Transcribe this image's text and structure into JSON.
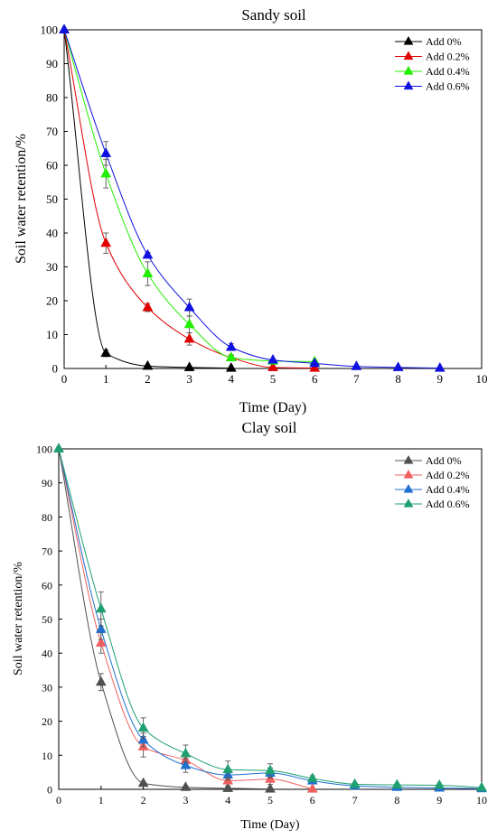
{
  "chart_data": [
    {
      "type": "line",
      "title": "Sandy soil",
      "xlabel": "Time (Day)",
      "ylabel": "Soil water retention/%",
      "xlim": [
        0,
        10
      ],
      "ylim": [
        0,
        100
      ],
      "xticks": [
        "0",
        "1",
        "2",
        "3",
        "4",
        "5",
        "6",
        "7",
        "8",
        "9",
        "10"
      ],
      "yticks": [
        "0",
        "10",
        "20",
        "30",
        "40",
        "50",
        "60",
        "70",
        "80",
        "90",
        "100"
      ],
      "legend_position": "top-right",
      "marker": "triangle",
      "series": [
        {
          "name": "Add 0%",
          "color": "#000000",
          "x": [
            0,
            1,
            2,
            3,
            4
          ],
          "y": [
            100,
            4.5,
            0.7,
            0.3,
            0.1
          ],
          "err": [
            0,
            1.0,
            0.3,
            0.2,
            0.1
          ]
        },
        {
          "name": "Add 0.2%",
          "color": "#e00000",
          "x": [
            0,
            1,
            2,
            3,
            4,
            5,
            6
          ],
          "y": [
            100,
            37,
            18,
            8.7,
            3.2,
            0.3,
            0.1
          ],
          "err": [
            0,
            3.0,
            1.2,
            1.8,
            0.8,
            0.2,
            0.1
          ]
        },
        {
          "name": "Add 0.4%",
          "color": "#22ee00",
          "x": [
            0,
            1,
            2,
            3,
            4,
            5,
            6
          ],
          "y": [
            100,
            57.5,
            28,
            13,
            3.2,
            2.2,
            2.0
          ],
          "err": [
            0,
            4.2,
            3.5,
            2.5,
            0.8,
            0.4,
            0.3
          ]
        },
        {
          "name": "Add 0.6%",
          "color": "#1010e0",
          "x": [
            0,
            1,
            2,
            3,
            4,
            5,
            6,
            7,
            8,
            9
          ],
          "y": [
            100,
            63.5,
            33.5,
            18,
            6.3,
            2.5,
            1.5,
            0.6,
            0.3,
            0.1
          ],
          "err": [
            0,
            3.5,
            0.8,
            2.5,
            1.0,
            0.3,
            0.3,
            0.2,
            0.1,
            0.1
          ]
        }
      ]
    },
    {
      "type": "line",
      "title": "Clay soil",
      "xlabel": "Time (Day)",
      "ylabel": "Soil water retention/%",
      "xlim": [
        0,
        10
      ],
      "ylim": [
        0,
        100
      ],
      "xticks": [
        "0",
        "1",
        "2",
        "3",
        "4",
        "5",
        "6",
        "7",
        "8",
        "9",
        "10"
      ],
      "yticks": [
        "0",
        "10",
        "20",
        "30",
        "40",
        "50",
        "60",
        "70",
        "80",
        "90",
        "100"
      ],
      "legend_position": "top-right",
      "marker": "triangle",
      "series": [
        {
          "name": "Add 0%",
          "color": "#505050",
          "x": [
            0,
            1,
            2,
            3,
            4,
            5
          ],
          "y": [
            100,
            31.5,
            1.8,
            0.6,
            0.3,
            0.1
          ],
          "err": [
            0,
            2.5,
            0.4,
            0.3,
            0.2,
            0.1
          ]
        },
        {
          "name": "Add 0.2%",
          "color": "#f06060",
          "x": [
            0,
            1,
            2,
            3,
            4,
            5,
            6
          ],
          "y": [
            100,
            43,
            12.5,
            8.5,
            2.5,
            3.0,
            0.1
          ],
          "err": [
            0,
            3.0,
            3.0,
            1.5,
            1.5,
            1.5,
            0.1
          ]
        },
        {
          "name": "Add 0.4%",
          "color": "#2070d0",
          "x": [
            0,
            1,
            2,
            3,
            4,
            5,
            6,
            7,
            8,
            9,
            10
          ],
          "y": [
            100,
            47,
            14.5,
            7,
            4.2,
            4.8,
            2.5,
            1.0,
            0.6,
            0.4,
            0.2
          ],
          "err": [
            0,
            3.0,
            2.0,
            2.0,
            1.5,
            1.5,
            0.5,
            0.3,
            0.2,
            0.2,
            0.1
          ]
        },
        {
          "name": "Add 0.6%",
          "color": "#20a070",
          "x": [
            0,
            1,
            2,
            3,
            4,
            5,
            6,
            7,
            8,
            9,
            10
          ],
          "y": [
            100,
            53,
            18,
            10.5,
            5.8,
            5.5,
            3.2,
            1.5,
            1.3,
            1.2,
            0.5
          ],
          "err": [
            0,
            5.0,
            3.0,
            2.5,
            2.5,
            2.0,
            0.8,
            0.3,
            0.3,
            0.3,
            0.2
          ]
        }
      ]
    }
  ]
}
